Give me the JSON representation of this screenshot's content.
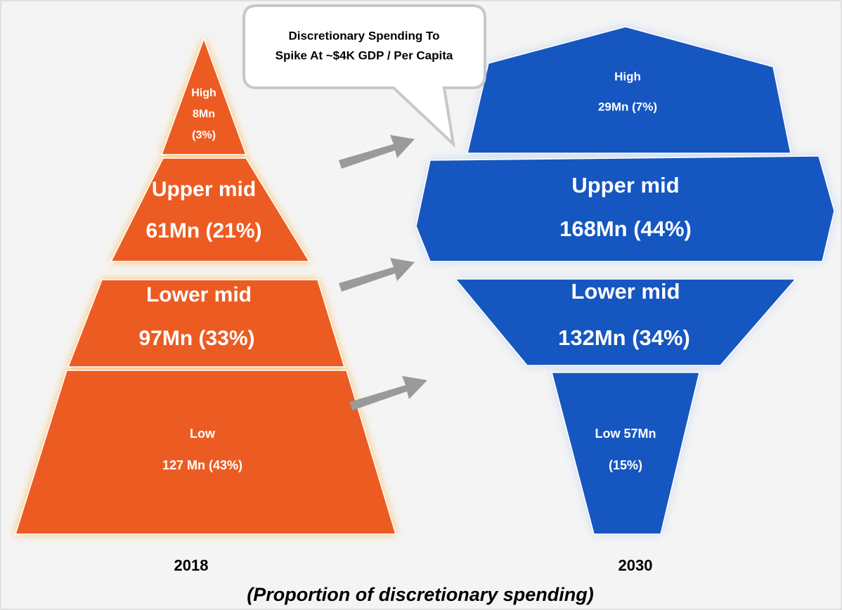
{
  "callout": [
    "Discretionary Spending To",
    "Spike At ~$4K GDP / Per Capita"
  ],
  "left": {
    "label": "2018",
    "segments": [
      {
        "lines": [
          "High",
          "8Mn",
          "(3%)"
        ]
      },
      {
        "lines": [
          "Upper mid",
          "61Mn (21%)"
        ]
      },
      {
        "lines": [
          "Lower mid",
          "97Mn (33%)"
        ]
      },
      {
        "lines": [
          "Low",
          "127 Mn (43%)"
        ]
      }
    ]
  },
  "right": {
    "label": "2030",
    "segments": [
      {
        "lines": [
          "High",
          "29Mn (7%)"
        ]
      },
      {
        "lines": [
          "Upper mid",
          "168Mn (44%)"
        ]
      },
      {
        "lines": [
          "Lower mid",
          "132Mn (34%)"
        ]
      },
      {
        "lines": [
          "Low 57Mn",
          "(15%)"
        ]
      }
    ]
  },
  "caption": "(Proportion of discretionary spending)"
}
